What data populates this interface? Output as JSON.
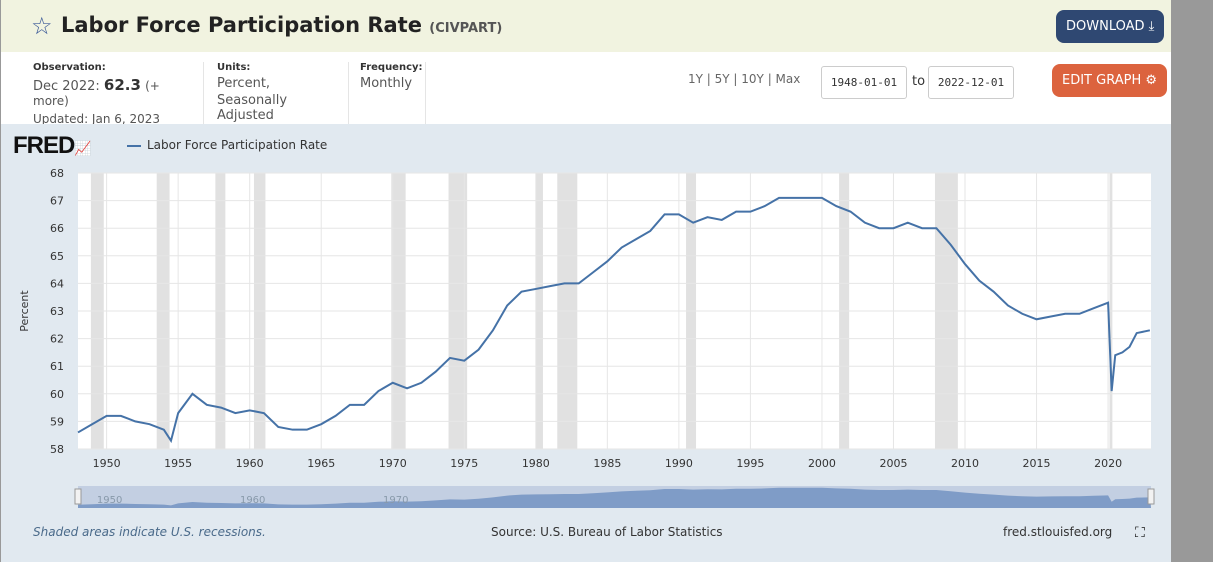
{
  "header": {
    "title": "Labor Force Participation Rate",
    "series_id": "(CIVPART)",
    "download_label": "DOWNLOAD",
    "edit_graph_label": "EDIT GRAPH"
  },
  "meta": {
    "observation_label": "Observation:",
    "observation_date": "Dec 2022:",
    "observation_value": "62.3",
    "more": "(+ more)",
    "updated": "Updated: Jan 6, 2023",
    "units_label": "Units:",
    "units_line1": "Percent,",
    "units_line2": "Seasonally Adjusted",
    "frequency_label": "Frequency:",
    "frequency": "Monthly"
  },
  "range": {
    "options": "1Y | 5Y | 10Y | Max",
    "start": "1948-01-01",
    "to": "to",
    "end": "2022-12-01"
  },
  "footer": {
    "recession_note": "Shaded areas indicate U.S. recessions.",
    "source": "Source: U.S. Bureau of Labor Statistics",
    "site": "fred.stlouisfed.org"
  },
  "logo": "FRED",
  "chart_data": {
    "type": "line",
    "title": "",
    "ylabel": "Percent",
    "xlim": [
      1948,
      2023
    ],
    "ylim": [
      58,
      68
    ],
    "grid": true,
    "legend": "top-left",
    "yticks": [
      58,
      59,
      60,
      61,
      62,
      63,
      64,
      65,
      66,
      67,
      68
    ],
    "xticks": [
      1950,
      1955,
      1960,
      1965,
      1970,
      1975,
      1980,
      1985,
      1990,
      1995,
      2000,
      2005,
      2010,
      2015,
      2020
    ],
    "series": [
      {
        "name": "Labor Force Participation Rate",
        "color": "#4572a7",
        "x": [
          1948,
          1949,
          1950,
          1951,
          1952,
          1953,
          1954,
          1954.5,
          1955,
          1956,
          1957,
          1958,
          1959,
          1960,
          1961,
          1962,
          1963,
          1964,
          1965,
          1966,
          1967,
          1968,
          1969,
          1970,
          1971,
          1972,
          1973,
          1974,
          1975,
          1976,
          1977,
          1978,
          1979,
          1980,
          1981,
          1982,
          1983,
          1984,
          1985,
          1986,
          1987,
          1988,
          1989,
          1990,
          1991,
          1992,
          1993,
          1994,
          1995,
          1996,
          1997,
          1998,
          1999,
          2000,
          2001,
          2002,
          2003,
          2004,
          2005,
          2006,
          2007,
          2008,
          2009,
          2010,
          2011,
          2012,
          2013,
          2014,
          2015,
          2016,
          2017,
          2018,
          2019,
          2020,
          2020.25,
          2020.5,
          2021,
          2021.5,
          2022,
          2022.92
        ],
        "y": [
          58.6,
          58.9,
          59.2,
          59.2,
          59.0,
          58.9,
          58.7,
          58.3,
          59.3,
          60.0,
          59.6,
          59.5,
          59.3,
          59.4,
          59.3,
          58.8,
          58.7,
          58.7,
          58.9,
          59.2,
          59.6,
          59.6,
          60.1,
          60.4,
          60.2,
          60.4,
          60.8,
          61.3,
          61.2,
          61.6,
          62.3,
          63.2,
          63.7,
          63.8,
          63.9,
          64.0,
          64.0,
          64.4,
          64.8,
          65.3,
          65.6,
          65.9,
          66.5,
          66.5,
          66.2,
          66.4,
          66.3,
          66.6,
          66.6,
          66.8,
          67.1,
          67.1,
          67.1,
          67.1,
          66.8,
          66.6,
          66.2,
          66.0,
          66.0,
          66.2,
          66.0,
          66.0,
          65.4,
          64.7,
          64.1,
          63.7,
          63.2,
          62.9,
          62.7,
          62.8,
          62.9,
          62.9,
          63.1,
          63.3,
          60.1,
          61.4,
          61.5,
          61.7,
          62.2,
          62.3
        ]
      }
    ],
    "recessions": [
      [
        1948.9,
        1949.8
      ],
      [
        1953.5,
        1954.4
      ],
      [
        1957.6,
        1958.3
      ],
      [
        1960.3,
        1961.1
      ],
      [
        1969.9,
        1970.9
      ],
      [
        1973.9,
        1975.2
      ],
      [
        1980.0,
        1980.5
      ],
      [
        1981.5,
        1982.9
      ],
      [
        1990.5,
        1991.2
      ],
      [
        2001.2,
        2001.9
      ],
      [
        2007.9,
        2009.5
      ],
      [
        2020.1,
        2020.3
      ]
    ],
    "navigator_labels": [
      "1950",
      "1960",
      "1970"
    ]
  }
}
